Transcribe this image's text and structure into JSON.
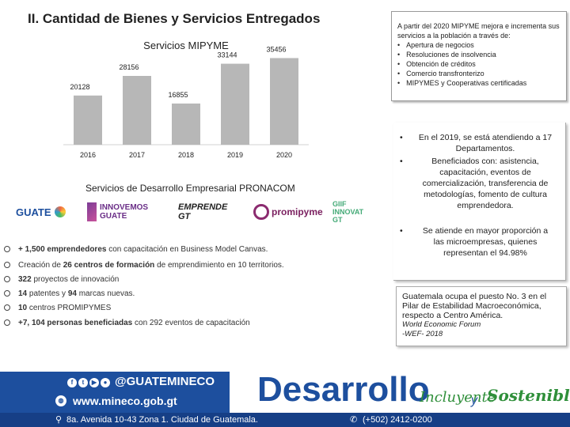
{
  "title": "II. Cantidad de Bienes y Servicios Entregados",
  "chart_data": {
    "type": "bar",
    "title": "Servicios MIPYME",
    "categories": [
      "2016",
      "2017",
      "2018",
      "2019",
      "2020"
    ],
    "values": [
      20128,
      28156,
      16855,
      33144,
      35456
    ],
    "value_labels": [
      "20128",
      "28156",
      "16855",
      "33144",
      "35456"
    ],
    "ylim": [
      0,
      40000
    ],
    "xlabel": "",
    "ylabel": "",
    "bar_color": "#b7b7b7"
  },
  "pronacom": {
    "title": "Servicios de Desarrollo Empresarial PRONACOM",
    "logos": [
      "GUATE",
      "INNOVEMOS GUATE",
      "EMPRENDE GT",
      "promipyme",
      "GIIF INNOVAT GT"
    ]
  },
  "bullets": [
    {
      "b1": "+ 1,500 emprendedores",
      "t1": " con capacitación en Business Model Canvas."
    },
    {
      "t0": "Creación de ",
      "b1": "26 centros de formación",
      "t1": " de emprendimiento en 10 territorios."
    },
    {
      "b1": "322",
      "t1": " proyectos de innovación"
    },
    {
      "b1": "14",
      "t1": " patentes y ",
      "b2": "94",
      "t2": " marcas nuevas."
    },
    {
      "b1": "10",
      "t1": " centros PROMIPYMES"
    },
    {
      "b1": "+7, 104 personas beneficiadas",
      "t1": " con 292 eventos de capacitación"
    }
  ],
  "box1": {
    "intro": "A partir del 2020 MIPYME mejora e incrementa sus servicios a la población a través de:",
    "items": [
      "Apertura de negocios",
      "Resoluciones de insolvencia",
      "Obtención de créditos",
      "Comercio transfronterizo",
      "MIPYMES y Cooperativas certificadas"
    ]
  },
  "box2": {
    "items": [
      "En el 2019, se está atendiendo a 17 Departamentos.",
      "Beneficiados con: asistencia, capacitación, eventos de comercialización, transferencia de metodologías, fomento de cultura emprendedora.",
      "Se atiende en mayor proporción a las microempresas, quienes representan el 94.98%"
    ]
  },
  "box3": {
    "text": "Guatemala ocupa el puesto No. 3 en el Pilar de Estabilidad Macroeconómica, respecto a Centro América.",
    "source1": "World Economic Forum",
    "source2": "-WEF- 2018"
  },
  "footer": {
    "handle": "@GUATEMINECO",
    "website": "www.mineco.gob.gt",
    "address": "8a. Avenida 10-43 Zona 1. Ciudad de Guatemala.",
    "phone": "(+502) 2412-0200",
    "brand": "Desarrollo",
    "tag1": "Incluyente",
    "tag2": "y",
    "tag3": "Sostenible"
  },
  "colors": {
    "brand_blue": "#1d4f9e",
    "brand_green": "#2f8f3a"
  }
}
